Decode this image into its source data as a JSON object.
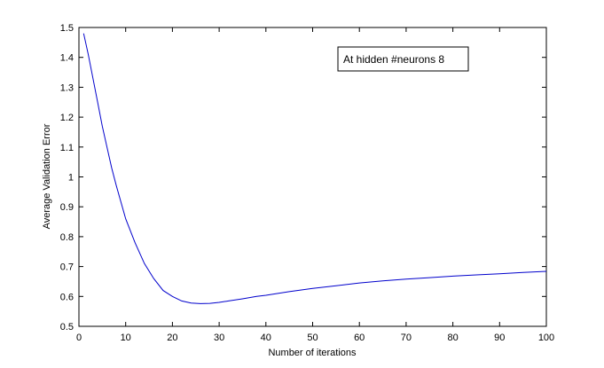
{
  "chart_data": {
    "type": "line",
    "title": "",
    "xlabel": "Number of iterations",
    "ylabel": "Average Validation Error",
    "xlim": [
      0,
      100
    ],
    "ylim": [
      0.5,
      1.5
    ],
    "xticks": [
      0,
      10,
      20,
      30,
      40,
      50,
      60,
      70,
      80,
      90,
      100
    ],
    "yticks": [
      0.5,
      0.6,
      0.7,
      0.8,
      0.9,
      1,
      1.1,
      1.2,
      1.3,
      1.4,
      1.5
    ],
    "grid": false,
    "annotation": "At hidden #neurons 8",
    "series": [
      {
        "color": "#0000cc",
        "x": [
          1,
          2,
          3,
          4,
          5,
          6,
          7,
          8,
          10,
          12,
          14,
          16,
          18,
          20,
          22,
          24,
          26,
          28,
          30,
          32,
          35,
          38,
          40,
          45,
          50,
          55,
          60,
          65,
          70,
          75,
          80,
          85,
          90,
          95,
          100
        ],
        "y": [
          1.48,
          1.41,
          1.33,
          1.25,
          1.17,
          1.1,
          1.03,
          0.97,
          0.86,
          0.78,
          0.71,
          0.66,
          0.62,
          0.6,
          0.585,
          0.578,
          0.576,
          0.577,
          0.58,
          0.585,
          0.592,
          0.6,
          0.604,
          0.616,
          0.627,
          0.636,
          0.645,
          0.652,
          0.658,
          0.663,
          0.668,
          0.672,
          0.676,
          0.68,
          0.684
        ]
      }
    ]
  }
}
